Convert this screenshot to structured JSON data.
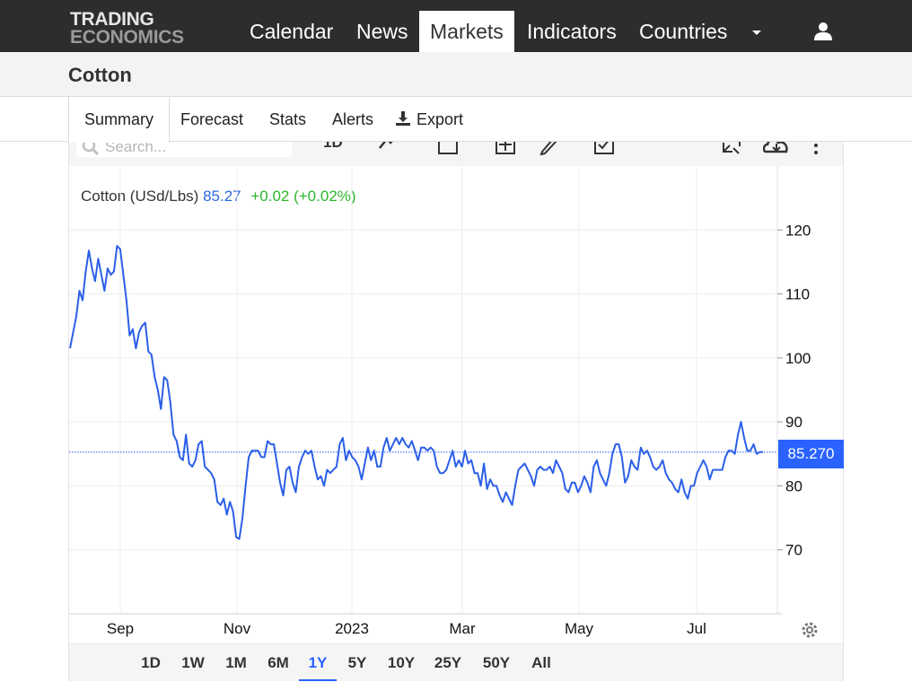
{
  "brand": {
    "line1": "TRADING",
    "line2": "ECONOMICS"
  },
  "nav": {
    "items": [
      "Calendar",
      "News",
      "Markets",
      "Indicators",
      "Countries"
    ],
    "active": "Markets"
  },
  "page": {
    "title": "Cotton"
  },
  "tabs": [
    "Summary",
    "Forecast",
    "Stats",
    "Alerts",
    "Export"
  ],
  "toolbar": {
    "search_placeholder": "Search...",
    "interval": "1D"
  },
  "chart_header": {
    "name": "Cotton (USd/Lbs)",
    "price": "85.27",
    "change": "+0.02 (+0.02%)"
  },
  "last_price_tag": "85.270",
  "ranges": [
    "1D",
    "1W",
    "1M",
    "6M",
    "1Y",
    "5Y",
    "10Y",
    "25Y",
    "50Y",
    "All"
  ],
  "active_range": "1Y",
  "colors": {
    "line": "#2b5fe8",
    "up": "#2bb52b",
    "tag": "#2962ff"
  },
  "chart_data": {
    "type": "line",
    "title": "Cotton (USd/Lbs)",
    "x_tick_labels": [
      "Sep",
      "Nov",
      "2023",
      "Mar",
      "May",
      "Jul"
    ],
    "y_ticks": [
      70,
      80,
      90,
      100,
      110,
      120
    ],
    "ylim": [
      60,
      130
    ],
    "y_axis_side": "right",
    "grid": true,
    "last_value": 85.27,
    "series": [
      {
        "values": [
          101.5,
          104,
          106.5,
          110.5,
          109,
          113.5,
          116.8,
          114,
          112,
          115.5,
          113,
          110.5,
          114,
          113,
          113.5,
          117.5,
          117,
          113,
          109,
          103.5,
          104.5,
          101.5,
          104,
          105,
          105.5,
          101,
          100.5,
          97,
          95,
          92,
          97,
          96.5,
          93,
          88,
          87,
          84.5,
          84,
          88,
          83.5,
          83,
          84,
          86.5,
          87,
          83,
          82.5,
          82,
          81,
          77.5,
          77,
          78,
          75.5,
          77.5,
          76,
          72,
          71.7,
          75,
          80,
          84.5,
          85.5,
          85.5,
          85.5,
          84.5,
          84.5,
          87,
          86.5,
          86.5,
          83.5,
          80.5,
          78.5,
          82.5,
          83,
          80.5,
          79,
          83,
          84.5,
          85.5,
          85,
          85.5,
          83,
          81,
          81.5,
          80,
          82.5,
          82,
          82.5,
          83,
          86.5,
          87.5,
          84,
          85.5,
          84.5,
          84,
          83,
          81,
          83.5,
          86,
          84,
          85.5,
          83,
          83,
          86,
          87.5,
          85.5,
          86.5,
          87.5,
          86.5,
          87.5,
          86.5,
          86,
          87,
          85.5,
          84,
          86,
          86,
          85.5,
          86,
          85.5,
          83,
          82,
          82,
          82.5,
          84,
          85.5,
          83,
          84,
          83,
          85.5,
          83.5,
          84,
          82,
          82,
          80,
          83.5,
          79.5,
          81,
          80,
          80,
          78.5,
          77.5,
          79,
          78,
          77,
          80,
          82.5,
          83,
          83.5,
          82.5,
          81.5,
          80,
          82.5,
          83,
          82.5,
          82.5,
          83,
          82,
          84,
          83,
          82,
          79.5,
          79,
          80.5,
          80.5,
          79,
          80,
          81.5,
          80.5,
          79,
          83,
          84,
          82,
          81,
          80,
          82,
          85,
          86.5,
          86.5,
          84.5,
          80.5,
          81.5,
          84,
          83,
          82.5,
          86,
          85,
          85.5,
          84.5,
          83,
          82.5,
          83,
          84,
          82,
          81,
          80.5,
          79.5,
          79,
          81,
          79,
          78,
          80,
          80,
          82,
          83,
          84,
          83,
          81,
          82.5,
          82.5,
          82.5,
          82.5,
          84.5,
          85.5,
          85.5,
          85,
          88,
          90,
          87.5,
          85.5,
          85.5,
          86.5,
          85,
          85.3,
          85.27
        ]
      }
    ]
  }
}
